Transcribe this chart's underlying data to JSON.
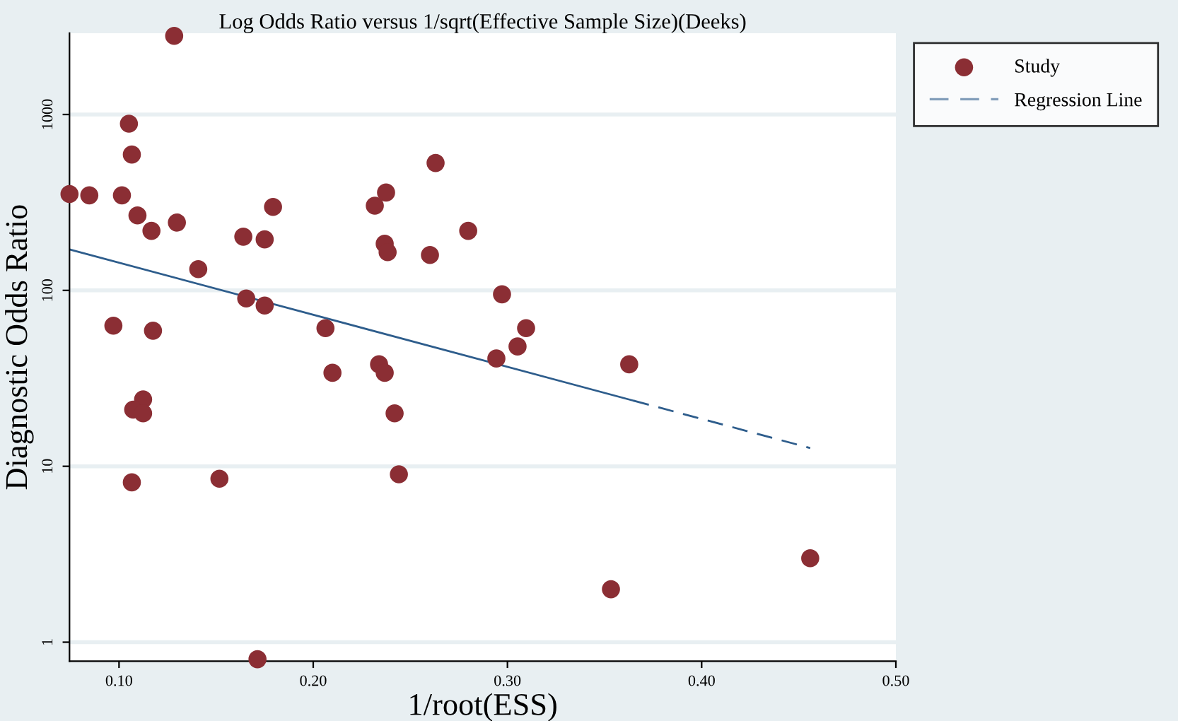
{
  "chart_data": {
    "type": "scatter",
    "title": "Log Odds Ratio versus 1/sqrt(Effective Sample Size)(Deeks)",
    "xlabel": "1/root(ESS)",
    "ylabel": "Diagnostic Odds Ratio",
    "series": [
      {
        "name": "Study",
        "color": "#8b2e34",
        "marker": "circle",
        "x": [
          0.0745,
          0.0847,
          0.1015,
          0.1284,
          0.1051,
          0.1066,
          0.1095,
          0.1167,
          0.1298,
          0.1408,
          0.0971,
          0.1175,
          0.164,
          0.1655,
          0.175,
          0.175,
          0.1793,
          0.2063,
          0.2099,
          0.2317,
          0.2375,
          0.263,
          0.2368,
          0.2383,
          0.2601,
          0.2798,
          0.2972,
          0.3096,
          0.3052,
          0.2943,
          0.3627,
          0.2339,
          0.2368,
          0.1124,
          0.1073,
          0.1124,
          0.2419,
          0.1066,
          0.1517,
          0.2441,
          0.1713,
          0.3533,
          0.4559
        ],
        "values": [
          353,
          347,
          347,
          2800,
          887,
          592,
          267,
          218,
          243,
          132,
          63,
          59,
          202,
          90,
          195,
          82,
          298,
          61,
          34,
          303,
          360,
          530,
          184,
          165,
          159,
          218,
          95,
          61,
          48,
          41,
          38,
          38,
          34,
          24,
          21,
          20,
          20,
          8.1,
          8.5,
          9.0,
          0.8,
          2.0,
          3.0
        ]
      },
      {
        "type": "line",
        "color": "#2e5d8c",
        "line_style": "solid",
        "x": [
          0.0745,
          0.365
        ],
        "values": [
          171,
          23.6
        ]
      },
      {
        "name": "Regression Line",
        "type": "line",
        "color": "#2e5d8c",
        "line_style": "dashed",
        "x": [
          0.365,
          0.4559
        ],
        "values": [
          23.6,
          12.7
        ]
      }
    ],
    "log": "y",
    "xlim": [
      0.0745,
      0.5
    ],
    "ylim": [
      0.78,
      2900
    ],
    "xticks": [
      {
        "value": 0.1,
        "label": "0.10"
      },
      {
        "value": 0.2,
        "label": "0.20"
      },
      {
        "value": 0.3,
        "label": "0.30"
      },
      {
        "value": 0.4,
        "label": "0.40"
      },
      {
        "value": 0.5,
        "label": "0.50"
      }
    ],
    "yticks": [
      1,
      10,
      100,
      1000
    ],
    "grid": "y",
    "legend": "right"
  }
}
